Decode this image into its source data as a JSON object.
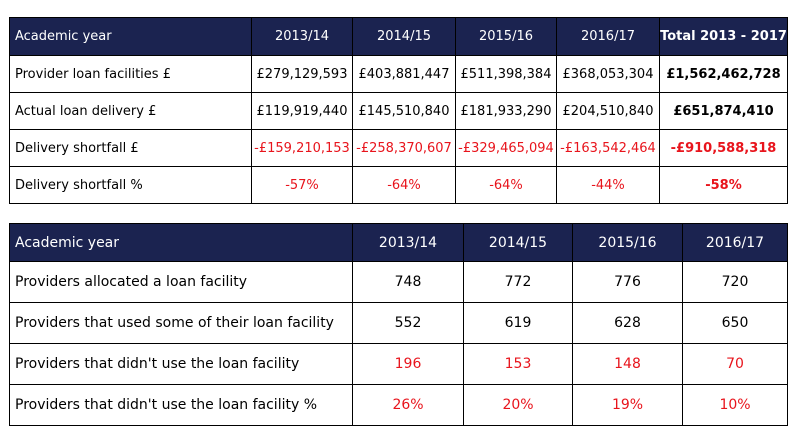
{
  "table1": {
    "headers": [
      "Academic year",
      "2013/14",
      "2014/15",
      "2015/16",
      "2016/17",
      "Total 2013 - 2017"
    ],
    "rows": [
      [
        "Provider loan facilities £",
        "£279,129,593",
        "£403,881,447",
        "£511,398,384",
        "£368,053,304",
        "£1,562,462,728"
      ],
      [
        "Actual loan delivery £",
        "£119,919,440",
        "£145,510,840",
        "£181,933,290",
        "£204,510,840",
        "£651,874,410"
      ],
      [
        "Delivery shortfall £",
        "-£159,210,153",
        "-£258,370,607",
        "-£329,465,094",
        "-£163,542,464",
        "-£910,588,318"
      ],
      [
        "Delivery shortfall %",
        "-57%",
        "-64%",
        "-64%",
        "-44%",
        "-58%"
      ]
    ]
  },
  "table2": {
    "headers": [
      "Academic year",
      "2013/14",
      "2014/15",
      "2015/16",
      "2016/17"
    ],
    "rows": [
      [
        "Providers allocated a loan facility",
        "748",
        "772",
        "776",
        "720"
      ],
      [
        "Providers that used some of their loan facility",
        "552",
        "619",
        "628",
        "650"
      ],
      [
        "Providers that didn't use the loan facility",
        "196",
        "153",
        "148",
        "70"
      ],
      [
        "Providers that didn't use the loan facility %",
        "26%",
        "20%",
        "19%",
        "10%"
      ]
    ]
  },
  "colors": {
    "header_bg": "#1b2350",
    "header_text": "#ffffff",
    "negative": "#e8141c"
  }
}
